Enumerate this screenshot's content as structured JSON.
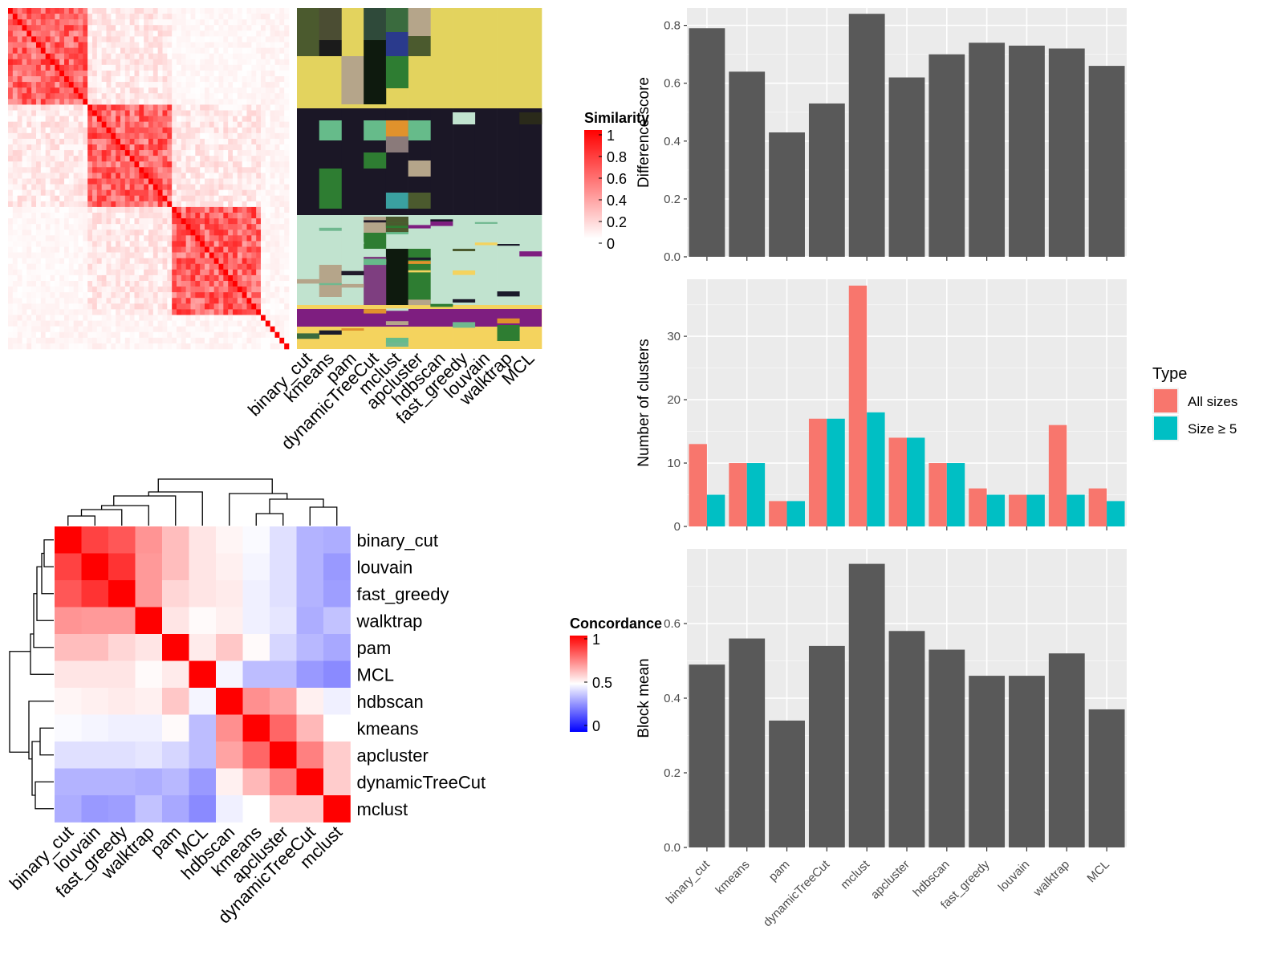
{
  "methods": [
    "binary_cut",
    "kmeans",
    "pam",
    "dynamicTreeCut",
    "mclust",
    "apcluster",
    "hdbscan",
    "fast_greedy",
    "louvain",
    "walktrap",
    "MCL"
  ],
  "similarity_legend": {
    "title": "Similarity",
    "ticks": [
      "1",
      "0.8",
      "0.6",
      "0.4",
      "0.2",
      "0"
    ],
    "colors": [
      "#ff0000",
      "#ffffff"
    ]
  },
  "concordance_legend": {
    "title": "Concordance",
    "ticks": [
      "1",
      "0.5",
      "0"
    ],
    "colors": [
      "#ff0000",
      "#ffffff",
      "#0000ff"
    ]
  },
  "chart_data": [
    {
      "type": "heatmap",
      "name": "similarity-heatmap",
      "note_levels": "high similarity along diagonal blocks"
    },
    {
      "type": "heatmap",
      "name": "cluster-label-heatmap",
      "columns": [
        "binary_cut",
        "kmeans",
        "pam",
        "dynamicTreeCut",
        "mclust",
        "apcluster",
        "hdbscan",
        "fast_greedy",
        "louvain",
        "walktrap",
        "MCL"
      ]
    },
    {
      "type": "heatmap",
      "name": "concordance-heatmap",
      "rows": [
        "binary_cut",
        "louvain",
        "fast_greedy",
        "walktrap",
        "pam",
        "MCL",
        "hdbscan",
        "kmeans",
        "apcluster",
        "dynamicTreeCut",
        "mclust"
      ],
      "cols": [
        "binary_cut",
        "louvain",
        "fast_greedy",
        "walktrap",
        "pam",
        "MCL",
        "hdbscan",
        "kmeans",
        "apcluster",
        "dynamicTreeCut",
        "mclust"
      ],
      "values": [
        [
          1.0,
          0.87,
          0.83,
          0.71,
          0.63,
          0.55,
          0.52,
          0.49,
          0.44,
          0.35,
          0.34
        ],
        [
          0.87,
          1.0,
          0.9,
          0.7,
          0.63,
          0.55,
          0.53,
          0.48,
          0.44,
          0.35,
          0.3
        ],
        [
          0.83,
          0.9,
          1.0,
          0.7,
          0.58,
          0.55,
          0.54,
          0.47,
          0.44,
          0.35,
          0.31
        ],
        [
          0.71,
          0.7,
          0.7,
          1.0,
          0.55,
          0.51,
          0.53,
          0.47,
          0.45,
          0.34,
          0.38
        ],
        [
          0.63,
          0.63,
          0.58,
          0.55,
          1.0,
          0.54,
          0.61,
          0.51,
          0.42,
          0.36,
          0.33
        ],
        [
          0.55,
          0.55,
          0.55,
          0.51,
          0.54,
          1.0,
          0.48,
          0.37,
          0.37,
          0.3,
          0.27
        ],
        [
          0.52,
          0.53,
          0.54,
          0.53,
          0.61,
          0.48,
          1.0,
          0.72,
          0.68,
          0.53,
          0.47
        ],
        [
          0.49,
          0.48,
          0.47,
          0.47,
          0.51,
          0.37,
          0.72,
          1.0,
          0.8,
          0.64,
          0.5
        ],
        [
          0.44,
          0.44,
          0.44,
          0.45,
          0.42,
          0.37,
          0.68,
          0.8,
          1.0,
          0.75,
          0.6
        ],
        [
          0.35,
          0.35,
          0.35,
          0.34,
          0.36,
          0.3,
          0.53,
          0.64,
          0.75,
          1.0,
          0.6
        ],
        [
          0.34,
          0.3,
          0.31,
          0.38,
          0.33,
          0.27,
          0.47,
          0.5,
          0.6,
          0.6,
          1.0
        ]
      ]
    },
    {
      "type": "bar",
      "name": "difference-score",
      "categories": [
        "binary_cut",
        "kmeans",
        "pam",
        "dynamicTreeCut",
        "mclust",
        "apcluster",
        "hdbscan",
        "fast_greedy",
        "louvain",
        "walktrap",
        "MCL"
      ],
      "values": [
        0.79,
        0.64,
        0.43,
        0.53,
        0.84,
        0.62,
        0.7,
        0.74,
        0.73,
        0.72,
        0.66
      ],
      "ylabel": "Difference score",
      "ylim": [
        0,
        0.86
      ],
      "yticks": [
        0.0,
        0.2,
        0.4,
        0.6,
        0.8
      ],
      "grid": true
    },
    {
      "type": "bar",
      "name": "number-of-clusters",
      "categories": [
        "binary_cut",
        "kmeans",
        "pam",
        "dynamicTreeCut",
        "mclust",
        "apcluster",
        "hdbscan",
        "fast_greedy",
        "louvain",
        "walktrap",
        "MCL"
      ],
      "series": [
        {
          "name": "All sizes",
          "color": "#F8766D",
          "values": [
            13,
            10,
            4,
            17,
            38,
            14,
            10,
            6,
            5,
            16,
            6
          ]
        },
        {
          "name": "Size ≥ 5",
          "color": "#00BFC4",
          "values": [
            5,
            10,
            4,
            17,
            18,
            14,
            10,
            5,
            5,
            5,
            4
          ]
        }
      ],
      "ylabel": "Number of clusters",
      "ylim": [
        0,
        39
      ],
      "yticks": [
        0,
        10,
        20,
        30
      ],
      "legend_title": "Type",
      "legend_position": "right",
      "grid": true
    },
    {
      "type": "bar",
      "name": "block-mean",
      "categories": [
        "binary_cut",
        "kmeans",
        "pam",
        "dynamicTreeCut",
        "mclust",
        "apcluster",
        "hdbscan",
        "fast_greedy",
        "louvain",
        "walktrap",
        "MCL"
      ],
      "values": [
        0.49,
        0.56,
        0.34,
        0.54,
        0.76,
        0.58,
        0.53,
        0.46,
        0.46,
        0.52,
        0.37
      ],
      "ylabel": "Block mean",
      "ylim": [
        0,
        0.8
      ],
      "yticks": [
        0.0,
        0.2,
        0.4,
        0.6
      ],
      "grid": true
    }
  ]
}
